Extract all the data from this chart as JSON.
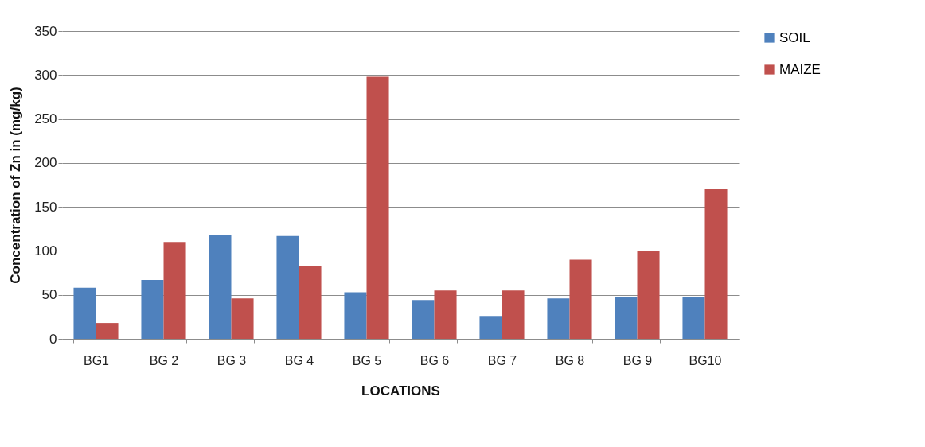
{
  "chart_data": {
    "type": "bar",
    "xlabel": "LOCATIONS",
    "ylabel": "Concentration of Zn in (mg/kg)",
    "categories": [
      "BG1",
      "BG 2",
      "BG 3",
      "BG 4",
      "BG 5",
      "BG 6",
      "BG 7",
      "BG 8",
      "BG 9",
      "BG10"
    ],
    "series": [
      {
        "name": "SOIL",
        "color": "#4f81bd",
        "values": [
          58,
          67,
          118,
          117,
          53,
          44,
          26,
          46,
          47,
          48
        ]
      },
      {
        "name": "MAIZE",
        "color": "#c0504d",
        "values": [
          18,
          110,
          46,
          83,
          298,
          55,
          55,
          90,
          100,
          171
        ]
      }
    ],
    "ylim": [
      0,
      350
    ],
    "yticks": [
      0,
      50,
      100,
      150,
      200,
      250,
      300,
      350
    ],
    "grid": "y",
    "legend": "right"
  }
}
